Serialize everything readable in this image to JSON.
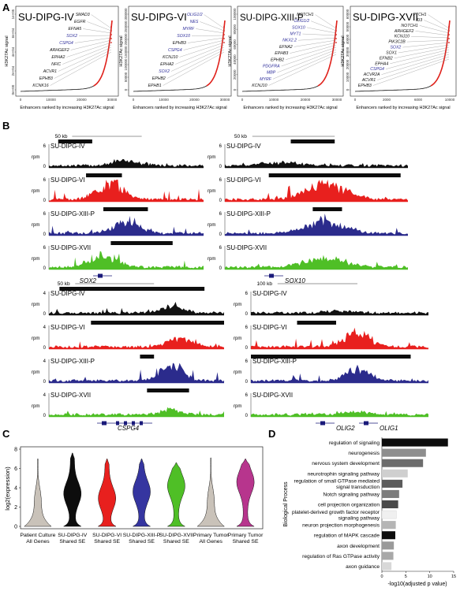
{
  "panel_labels": {
    "a": "A",
    "b": "B",
    "c": "C",
    "d": "D"
  },
  "panel_a": {
    "xlabel": "Enhancers ranked by increasing H3K27Ac signal",
    "ylabel": "H3K27Ac signal",
    "plots": [
      {
        "title": "SU-DIPG-IV",
        "yticks": [
          "0e+00",
          "2e+04",
          "4e+04",
          "6e+04",
          "1e+05"
        ],
        "xticks": [
          "0",
          "10000",
          "20000",
          "30000"
        ],
        "genes": [
          {
            "name": "SMAD3",
            "color": "#111111"
          },
          {
            "name": "EGFR",
            "color": "#111111"
          },
          {
            "name": "EFNA5",
            "color": "#111111"
          },
          {
            "name": "SOX2",
            "color": "#2d2d9a"
          },
          {
            "name": "CSPG4",
            "color": "#2d2d9a"
          },
          {
            "name": "ARHGEF2",
            "color": "#111111"
          },
          {
            "name": "EPHA2",
            "color": "#111111"
          },
          {
            "name": "NFIC",
            "color": "#111111"
          },
          {
            "name": "ACVR1",
            "color": "#111111"
          },
          {
            "name": "EPHB3",
            "color": "#111111"
          },
          {
            "name": "KCNK16",
            "color": "#111111"
          }
        ]
      },
      {
        "title": "SU-DIPG-VI",
        "yticks": [
          "0",
          "50000",
          "100000",
          "150000",
          "200000",
          "250000",
          "300000"
        ],
        "xticks": [
          "0",
          "10000",
          "20000",
          "30000"
        ],
        "genes": [
          {
            "name": "OLIG1/2",
            "color": "#2d2d9a"
          },
          {
            "name": "NES",
            "color": "#2d2d9a"
          },
          {
            "name": "MYRF",
            "color": "#2d2d9a"
          },
          {
            "name": "SOX10",
            "color": "#2d2d9a"
          },
          {
            "name": "EPHB3",
            "color": "#111111"
          },
          {
            "name": "CSPG4",
            "color": "#2d2d9a"
          },
          {
            "name": "KCNJ10",
            "color": "#111111"
          },
          {
            "name": "EPHA2",
            "color": "#111111"
          },
          {
            "name": "SOX2",
            "color": "#2d2d9a"
          },
          {
            "name": "EPHB2",
            "color": "#111111"
          },
          {
            "name": "EPHB1",
            "color": "#111111"
          }
        ]
      },
      {
        "title": "SU-DIPG-XIII-P",
        "yticks": [
          "0",
          "20000",
          "40000",
          "60000",
          "80000",
          "100000"
        ],
        "xticks": [
          "0",
          "10000",
          "20000",
          "30000"
        ],
        "genes": [
          {
            "name": "NOTCH1",
            "color": "#111111"
          },
          {
            "name": "OLIG1/2",
            "color": "#2d2d9a"
          },
          {
            "name": "SOX10",
            "color": "#2d2d9a"
          },
          {
            "name": "MYT1",
            "color": "#2d2d9a"
          },
          {
            "name": "NKX2.2",
            "color": "#2d2d9a"
          },
          {
            "name": "EFNA2",
            "color": "#111111"
          },
          {
            "name": "EPHB3",
            "color": "#111111"
          },
          {
            "name": "EPHB2",
            "color": "#111111"
          },
          {
            "name": "PDGFRA",
            "color": "#2d2d9a"
          },
          {
            "name": "MBP",
            "color": "#2d2d9a"
          },
          {
            "name": "MYRF",
            "color": "#2d2d9a"
          },
          {
            "name": "KCNJ10",
            "color": "#111111"
          }
        ]
      },
      {
        "title": "SU-DIPG-XVII",
        "yticks": [
          "0",
          "10000",
          "20000",
          "30000",
          "40000",
          "50000",
          "60000"
        ],
        "xticks": [
          "0",
          "2000",
          "6000",
          "10000"
        ],
        "genes": [
          {
            "name": "PTCH1",
            "color": "#111111"
          },
          {
            "name": "ID3",
            "color": "#111111"
          },
          {
            "name": "NOTCH1",
            "color": "#111111"
          },
          {
            "name": "ARHGEF2",
            "color": "#111111"
          },
          {
            "name": "KCNJ10",
            "color": "#111111"
          },
          {
            "name": "PIK3C2B",
            "color": "#111111"
          },
          {
            "name": "SOX2",
            "color": "#2d2d9a"
          },
          {
            "name": "SOX1",
            "color": "#111111"
          },
          {
            "name": "EFNB2",
            "color": "#111111"
          },
          {
            "name": "EPHA4",
            "color": "#111111"
          },
          {
            "name": "CSPG4",
            "color": "#2d2d9a"
          },
          {
            "name": "ACVR2A",
            "color": "#111111"
          },
          {
            "name": "ACVR1",
            "color": "#111111"
          },
          {
            "name": "EPHB3",
            "color": "#111111"
          }
        ]
      }
    ]
  },
  "panel_b": {
    "ylabel": "rpm",
    "tracks": [
      {
        "name": "SU-DIPG-IV",
        "color": "#111111"
      },
      {
        "name": "SU-DIPG-VI",
        "color": "#e8201e"
      },
      {
        "name": "SU-DIPG-XIII-P",
        "color": "#2b2b8c"
      },
      {
        "name": "SU-DIPG-XVII",
        "color": "#4fbf26"
      }
    ],
    "loci": [
      {
        "scale": "50 kb",
        "ymax": [
          "6",
          "6",
          "6",
          "6"
        ],
        "genes": [
          "SOX2"
        ]
      },
      {
        "scale": "50 kb",
        "ymax": [
          "6",
          "6",
          "6",
          "6"
        ],
        "genes": [
          "SOX10"
        ]
      },
      {
        "scale": "50 kb",
        "ymax": [
          "4",
          "4",
          "4",
          "4"
        ],
        "genes": [
          "CSPG4"
        ]
      },
      {
        "scale": "100 kb",
        "ymax": [
          "6",
          "6",
          "6",
          "6"
        ],
        "genes": [
          "OLIG2",
          "OLIG1"
        ]
      }
    ]
  },
  "chart_data": [
    {
      "type": "violin",
      "ylabel": "log2(expression)",
      "ylim": [
        0,
        8
      ],
      "yticks": [
        0,
        2,
        4,
        6,
        8
      ],
      "categories": [
        {
          "line1": "Patient Culture",
          "line2": "All Genes",
          "color": "#c9c2b9",
          "peak": 0.3,
          "top": 7.0
        },
        {
          "line1": "SU-DIPG-IV",
          "line2": "Shared SE",
          "color": "#0d0d0d",
          "peak": 3.4,
          "top": 7.6
        },
        {
          "line1": "SU-DIPG-VI",
          "line2": "Shared SE",
          "color": "#e8201e",
          "peak": 2.9,
          "top": 7.0
        },
        {
          "line1": "SU-DIPG-XIII-P",
          "line2": "Shared SE",
          "color": "#3535a0",
          "peak": 3.6,
          "top": 7.0
        },
        {
          "line1": "SU-DIPG-XVII",
          "line2": "Shared SE",
          "color": "#4fbf26",
          "peak": 4.2,
          "top": 6.6
        },
        {
          "line1": "Primary Tumor",
          "line2": "All Genes",
          "color": "#c9c2b9",
          "peak": 0.3,
          "top": 7.1
        },
        {
          "line1": "Primary Tumor",
          "line2": "Shared SE",
          "color": "#b7358d",
          "peak": 4.6,
          "top": 7.0
        }
      ]
    },
    {
      "type": "bar",
      "orientation": "horizontal",
      "ylabel": "Biological Process",
      "xlabel": "-log10(adjusted p value)",
      "xlim": [
        0,
        15
      ],
      "xticks": [
        0,
        5,
        10,
        15
      ],
      "categories": [
        {
          "label": [
            "regulation of signaling"
          ],
          "value": 13.8,
          "color": "#0d0d0d"
        },
        {
          "label": [
            "neurogenesis"
          ],
          "value": 9.2,
          "color": "#8e8e8e"
        },
        {
          "label": [
            "nervous system development"
          ],
          "value": 8.6,
          "color": "#6c6c6c"
        },
        {
          "label": [
            "neurotrophin signaling pathway"
          ],
          "value": 5.4,
          "color": "#cfcfcf"
        },
        {
          "label": [
            "regulation of small GTPase mediated",
            "signal transduction"
          ],
          "value": 4.3,
          "color": "#5b5b5b"
        },
        {
          "label": [
            "Notch signaling pathway"
          ],
          "value": 3.6,
          "color": "#7d7d7d"
        },
        {
          "label": [
            "cell projection organization"
          ],
          "value": 3.4,
          "color": "#4a4a4a"
        },
        {
          "label": [
            "platelet-derived growth factor receptor",
            "signaling pathway"
          ],
          "value": 3.0,
          "color": "#f0f0f0"
        },
        {
          "label": [
            "neuron projection morphogenesis"
          ],
          "value": 2.9,
          "color": "#b5b5b5"
        },
        {
          "label": [
            "regulation of MAPK cascade"
          ],
          "value": 2.8,
          "color": "#0d0d0d"
        },
        {
          "label": [
            "axon development"
          ],
          "value": 2.5,
          "color": "#9a9a9a"
        },
        {
          "label": [
            "regulation of Ras GTPase activity"
          ],
          "value": 2.4,
          "color": "#a8a8a8"
        },
        {
          "label": [
            "axon guidance"
          ],
          "value": 2.0,
          "color": "#d8d8d8"
        }
      ]
    }
  ]
}
